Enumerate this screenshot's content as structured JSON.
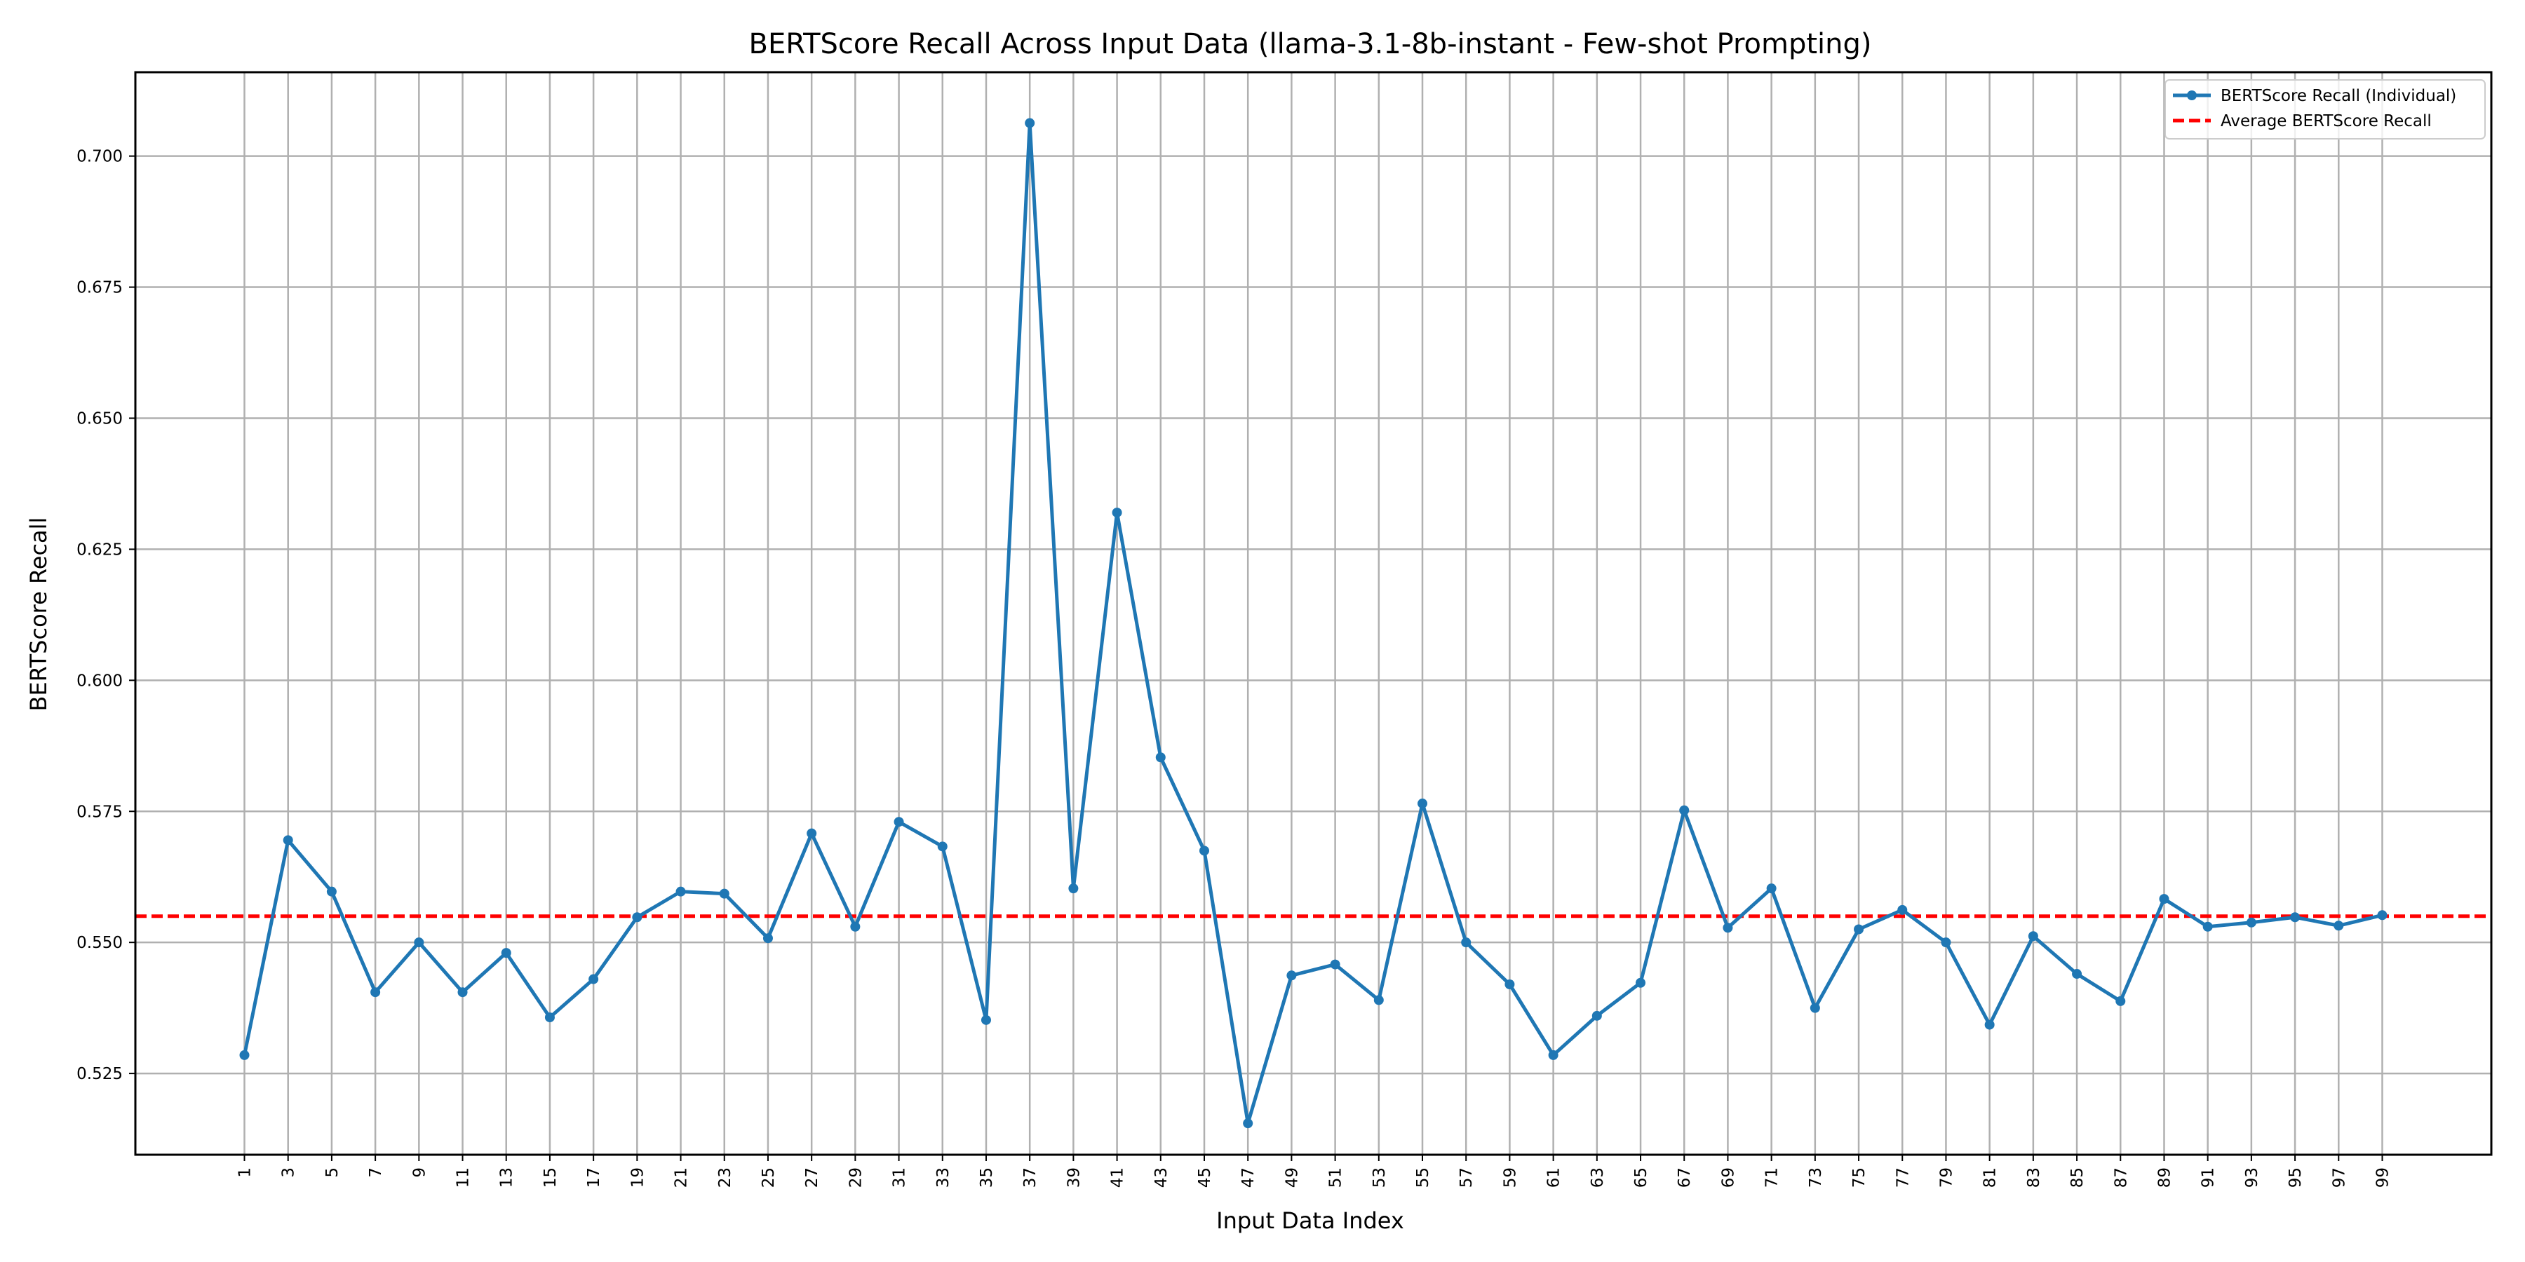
{
  "chart_data": {
    "type": "line",
    "title": "BERTScore Recall Across Input Data (llama-3.1-8b-instant - Few-shot Prompting)",
    "xlabel": "Input Data Index",
    "ylabel": "BERTScore Recall",
    "x": [
      1,
      3,
      5,
      7,
      9,
      11,
      13,
      15,
      17,
      19,
      21,
      23,
      25,
      27,
      29,
      31,
      33,
      35,
      37,
      39,
      41,
      43,
      45,
      47,
      49,
      51,
      53,
      55,
      57,
      59,
      61,
      63,
      65,
      67,
      69,
      71,
      73,
      75,
      77,
      79,
      81,
      83,
      85,
      87,
      89,
      91,
      93,
      95,
      97,
      99
    ],
    "series": [
      {
        "name": "BERTScore Recall (Individual)",
        "color": "#1f77b4",
        "style": "solid-with-markers",
        "values": [
          0.5285,
          0.5695,
          0.5597,
          0.5405,
          0.55,
          0.5405,
          0.548,
          0.5357,
          0.543,
          0.5548,
          0.5597,
          0.5593,
          0.5508,
          0.5708,
          0.553,
          0.573,
          0.5683,
          0.5352,
          0.7063,
          0.5603,
          0.632,
          0.5853,
          0.5675,
          0.5155,
          0.5437,
          0.5458,
          0.539,
          0.5765,
          0.55,
          0.542,
          0.5285,
          0.536,
          0.5423,
          0.5752,
          0.5528,
          0.5603,
          0.5375,
          0.5525,
          0.5562,
          0.55,
          0.5343,
          0.5512,
          0.544,
          0.5388,
          0.5583,
          0.553,
          0.5538,
          0.5548,
          0.5532,
          0.5552
        ]
      },
      {
        "name": "Average BERTScore Recall",
        "color": "#ff0000",
        "style": "dashed",
        "value": 0.555
      }
    ],
    "ylim": [
      0.5095,
      0.716
    ],
    "xlim": [
      -4.0,
      104.0
    ],
    "yticks": [
      0.525,
      0.55,
      0.575,
      0.6,
      0.625,
      0.65,
      0.675,
      0.7
    ],
    "ytick_labels": [
      "0.525",
      "0.550",
      "0.575",
      "0.600",
      "0.625",
      "0.650",
      "0.675",
      "0.700"
    ],
    "xtick_labels": [
      "1",
      "3",
      "5",
      "7",
      "9",
      "11",
      "13",
      "15",
      "17",
      "19",
      "21",
      "23",
      "25",
      "27",
      "29",
      "31",
      "33",
      "35",
      "37",
      "39",
      "41",
      "43",
      "45",
      "47",
      "49",
      "51",
      "53",
      "55",
      "57",
      "59",
      "61",
      "63",
      "65",
      "67",
      "69",
      "71",
      "73",
      "75",
      "77",
      "79",
      "81",
      "83",
      "85",
      "87",
      "89",
      "91",
      "93",
      "95",
      "97",
      "99"
    ],
    "grid": true,
    "legend_position": "top-right"
  }
}
